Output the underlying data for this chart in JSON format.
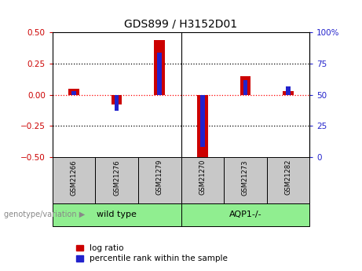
{
  "title": "GDS899 / H3152D01",
  "samples": [
    "GSM21266",
    "GSM21276",
    "GSM21279",
    "GSM21270",
    "GSM21273",
    "GSM21282"
  ],
  "log_ratios": [
    0.05,
    -0.08,
    0.44,
    -0.5,
    0.15,
    0.03
  ],
  "percentile_ranks": [
    53,
    37,
    84,
    8,
    62,
    57
  ],
  "groups": [
    "wild type",
    "wild type",
    "wild type",
    "AQP1-/-",
    "AQP1-/-",
    "AQP1-/-"
  ],
  "group_boundaries": [
    0,
    3,
    6
  ],
  "group_labels": [
    "wild type",
    "AQP1-/-"
  ],
  "group_color": "#90EE90",
  "tick_box_color": "#C8C8C8",
  "bar_color_red": "#CC0000",
  "bar_color_blue": "#2222CC",
  "ylim_left": [
    -0.5,
    0.5
  ],
  "ylim_right": [
    0,
    100
  ],
  "yticks_left": [
    -0.5,
    -0.25,
    0.0,
    0.25,
    0.5
  ],
  "yticks_right": [
    0,
    25,
    50,
    75,
    100
  ],
  "ytick_labels_right": [
    "0",
    "25",
    "50",
    "75",
    "100%"
  ],
  "hlines": [
    -0.25,
    0.0,
    0.25
  ],
  "legend_log_ratio": "log ratio",
  "legend_percentile": "percentile rank within the sample",
  "genotype_label": "genotype/variation",
  "red_bar_width": 0.25,
  "blue_bar_width": 0.1,
  "axis_color_left": "#CC0000",
  "axis_color_right": "#2222CC",
  "title_fontsize": 10,
  "tick_fontsize": 7.5,
  "label_fontsize": 7.5,
  "legend_fontsize": 7.5
}
